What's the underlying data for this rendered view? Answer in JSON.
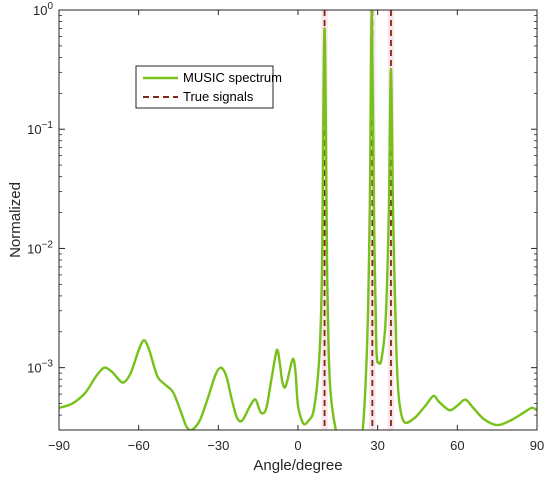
{
  "chart_data": {
    "type": "line",
    "title": "",
    "xlabel": "Angle/degree",
    "ylabel": "Normalized",
    "xlim": [
      -90,
      90
    ],
    "ylim": [
      0.0003,
      1
    ],
    "yscale": "log",
    "x_ticks": [
      -90,
      -60,
      -30,
      0,
      30,
      60,
      90
    ],
    "x_tick_labels": [
      "−90",
      "−60",
      "−30",
      "0",
      "30",
      "60",
      "90"
    ],
    "y_ticks": [
      0.001,
      0.01,
      0.1,
      1
    ],
    "y_tick_bases": [
      "10",
      "10",
      "10",
      "10"
    ],
    "y_tick_exponents": [
      "−3",
      "−2",
      "−1",
      "0"
    ],
    "grid": false,
    "legend_position": "top-left",
    "series": [
      {
        "name": "MUSIC spectrum",
        "color": "#77c11a",
        "style": "solid",
        "points": [
          [
            -90,
            0.00046
          ],
          [
            -85,
            0.0005
          ],
          [
            -80,
            0.00062
          ],
          [
            -76,
            0.00085
          ],
          [
            -73,
            0.001
          ],
          [
            -70,
            0.00092
          ],
          [
            -66,
            0.00075
          ],
          [
            -63,
            0.0009
          ],
          [
            -60,
            0.0014
          ],
          [
            -58,
            0.0017
          ],
          [
            -56,
            0.0014
          ],
          [
            -53,
            0.00085
          ],
          [
            -50,
            0.00072
          ],
          [
            -47,
            0.00062
          ],
          [
            -44,
            0.00042
          ],
          [
            -42,
            0.00032
          ],
          [
            -40,
            0.0003
          ],
          [
            -37,
            0.00036
          ],
          [
            -34,
            0.00055
          ],
          [
            -31,
            0.00088
          ],
          [
            -29,
            0.001
          ],
          [
            -27,
            0.00085
          ],
          [
            -25,
            0.00055
          ],
          [
            -23,
            0.00038
          ],
          [
            -21,
            0.00036
          ],
          [
            -18,
            0.00048
          ],
          [
            -16,
            0.00054
          ],
          [
            -14,
            0.00042
          ],
          [
            -12,
            0.00045
          ],
          [
            -10,
            0.0008
          ],
          [
            -8,
            0.0014
          ],
          [
            -7,
            0.00115
          ],
          [
            -6,
            0.00078
          ],
          [
            -5,
            0.00068
          ],
          [
            -4,
            0.00078
          ],
          [
            -2,
            0.00118
          ],
          [
            -1,
            0.00095
          ],
          [
            0,
            0.00048
          ],
          [
            2,
            0.00034
          ],
          [
            4,
            0.00036
          ],
          [
            6,
            0.00045
          ],
          [
            8,
            0.0012
          ],
          [
            9,
            0.006
          ],
          [
            10,
            0.7
          ],
          [
            11,
            0.006
          ],
          [
            12,
            0.00075
          ],
          [
            14,
            0.00032
          ],
          [
            16,
            0.00026
          ],
          [
            20,
            0.00025
          ],
          [
            24,
            0.00026
          ],
          [
            26,
            0.0015
          ],
          [
            27,
            0.02
          ],
          [
            27.8,
            1.0
          ],
          [
            28.6,
            0.02
          ],
          [
            29.5,
            0.0015
          ],
          [
            30.5,
            0.0011
          ],
          [
            31.5,
            0.0012
          ],
          [
            33,
            0.0025
          ],
          [
            34.2,
            0.02
          ],
          [
            35,
            0.32
          ],
          [
            35.8,
            0.02
          ],
          [
            37,
            0.0015
          ],
          [
            38,
            0.00055
          ],
          [
            40,
            0.00035
          ],
          [
            44,
            0.00038
          ],
          [
            48,
            0.00048
          ],
          [
            51,
            0.00058
          ],
          [
            53,
            0.00052
          ],
          [
            57,
            0.00044
          ],
          [
            60,
            0.00048
          ],
          [
            63,
            0.00054
          ],
          [
            66,
            0.00046
          ],
          [
            70,
            0.00037
          ],
          [
            75,
            0.00033
          ],
          [
            80,
            0.00036
          ],
          [
            85,
            0.00042
          ],
          [
            88,
            0.00046
          ],
          [
            90,
            0.00044
          ]
        ]
      },
      {
        "name": "True signals",
        "color": "#7a2a14",
        "style": "dashed",
        "x_values": [
          10,
          28,
          35
        ]
      }
    ]
  }
}
